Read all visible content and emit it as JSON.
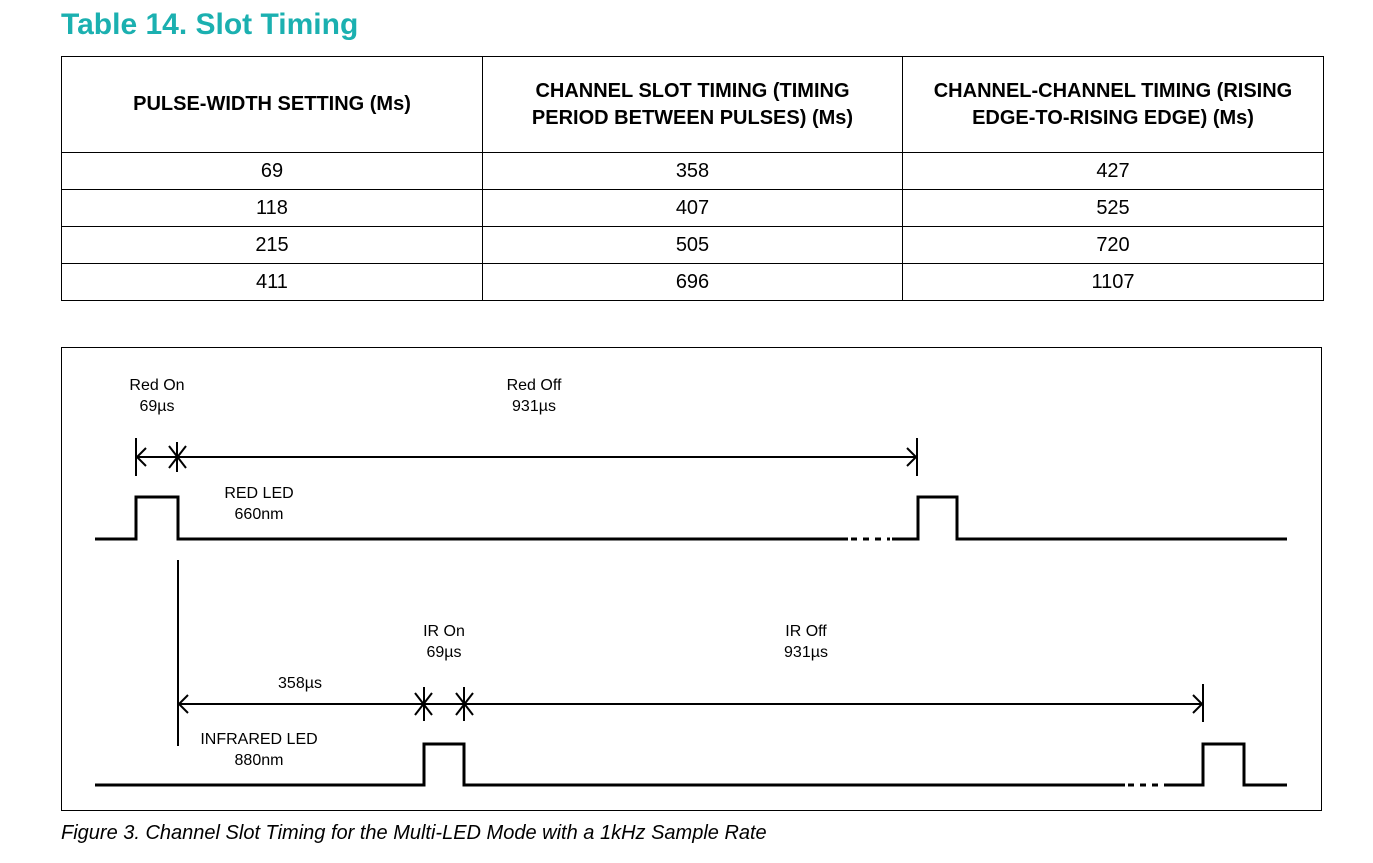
{
  "table": {
    "title": "Table 14. Slot Timing",
    "headers": [
      "PULSE-WIDTH SETTING (Ms)",
      "CHANNEL SLOT TIMING (TIMING PERIOD BETWEEN PULSES) (Ms)",
      "CHANNEL-CHANNEL TIMING (RISING EDGE-TO-RISING EDGE) (Ms)"
    ],
    "rows": [
      [
        "69",
        "358",
        "427"
      ],
      [
        "118",
        "407",
        "525"
      ],
      [
        "215",
        "505",
        "720"
      ],
      [
        "411",
        "696",
        "1107"
      ]
    ]
  },
  "figure": {
    "labels": {
      "red_on": [
        "Red On",
        "69µs"
      ],
      "red_off": [
        "Red Off",
        "931µs"
      ],
      "red_led": [
        "RED LED",
        "660nm"
      ],
      "ir_on": [
        "IR On",
        "69µs"
      ],
      "ir_off": [
        "IR Off",
        "931µs"
      ],
      "slot_gap": "358µs",
      "ir_led": [
        "INFRARED LED",
        "880nm"
      ]
    },
    "caption": "Figure 3. Channel Slot Timing for the Multi-LED Mode with a 1kHz Sample Rate"
  },
  "colors": {
    "title": "#1bb0b0",
    "lines": "#000000"
  }
}
